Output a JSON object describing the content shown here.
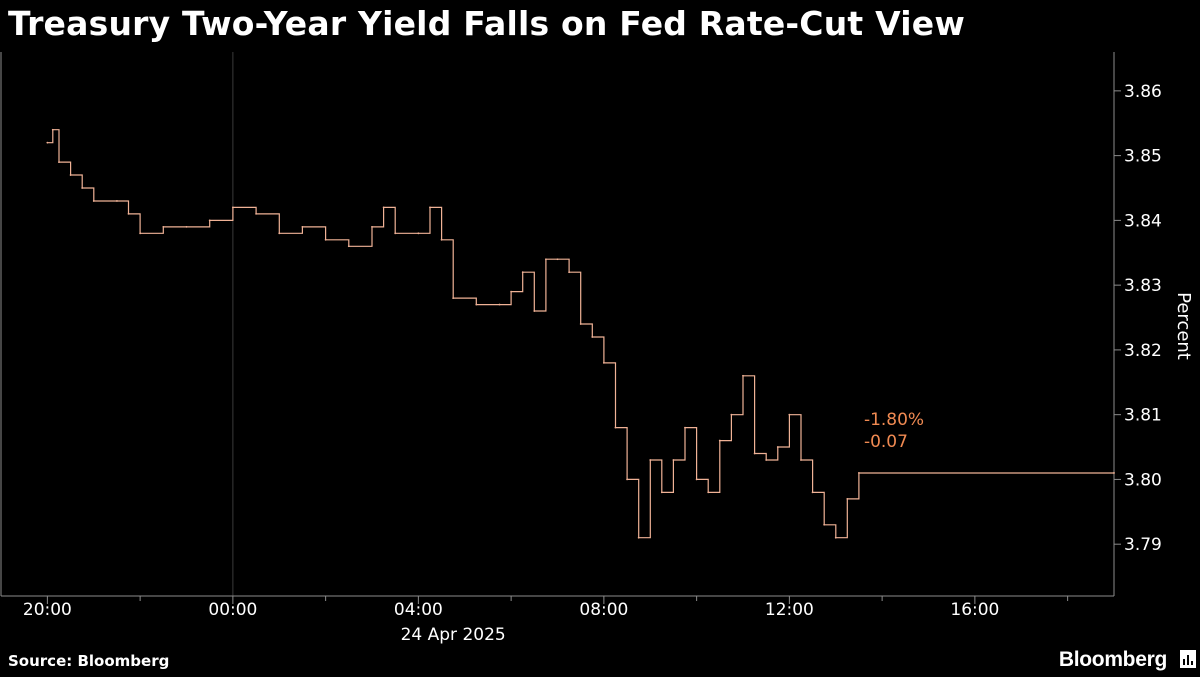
{
  "header": {
    "title": "Treasury Two-Year Yield Falls on Fed Rate-Cut View"
  },
  "footer": {
    "source": "Source: Bloomberg",
    "brand": "Bloomberg"
  },
  "colors": {
    "line": "#f0b296",
    "annotation": "#f08a52",
    "grid": "#3a3a3a",
    "axis": "#8c8c8c",
    "background": "#000000"
  },
  "chart_data": {
    "type": "line",
    "title": "Treasury Two-Year Yield Falls on Fed Rate-Cut View",
    "xlabel": "",
    "ylabel": "Percent",
    "date_label": "24 Apr 2025",
    "x_ticks": [
      "20:00",
      "00:00",
      "04:00",
      "08:00",
      "12:00",
      "16:00"
    ],
    "x_range": [
      "2025-04-23T19:00",
      "2025-04-24T19:00"
    ],
    "y_ticks": [
      "3.86",
      "3.85",
      "3.84",
      "3.83",
      "3.82",
      "3.81",
      "3.80",
      "3.79"
    ],
    "ylim": [
      3.782,
      3.866
    ],
    "grid": "vertical line at 00:00 only",
    "annotations": {
      "change_pct": "-1.80%",
      "change_abs": "-0.07"
    },
    "series": [
      {
        "values": [
          [
            "2025-04-23T20:00",
            3.852
          ],
          [
            "2025-04-23T20:07",
            3.854
          ],
          [
            "2025-04-23T20:15",
            3.849
          ],
          [
            "2025-04-23T20:30",
            3.847
          ],
          [
            "2025-04-23T20:45",
            3.845
          ],
          [
            "2025-04-23T21:00",
            3.843
          ],
          [
            "2025-04-23T21:30",
            3.843
          ],
          [
            "2025-04-23T21:45",
            3.841
          ],
          [
            "2025-04-23T22:00",
            3.838
          ],
          [
            "2025-04-23T22:30",
            3.839
          ],
          [
            "2025-04-23T23:00",
            3.839
          ],
          [
            "2025-04-23T23:30",
            3.84
          ],
          [
            "2025-04-24T00:00",
            3.842
          ],
          [
            "2025-04-24T00:30",
            3.841
          ],
          [
            "2025-04-24T01:00",
            3.838
          ],
          [
            "2025-04-24T01:30",
            3.839
          ],
          [
            "2025-04-24T02:00",
            3.837
          ],
          [
            "2025-04-24T02:30",
            3.836
          ],
          [
            "2025-04-24T03:00",
            3.839
          ],
          [
            "2025-04-24T03:15",
            3.842
          ],
          [
            "2025-04-24T03:30",
            3.838
          ],
          [
            "2025-04-24T04:00",
            3.838
          ],
          [
            "2025-04-24T04:15",
            3.842
          ],
          [
            "2025-04-24T04:30",
            3.837
          ],
          [
            "2025-04-24T04:45",
            3.828
          ],
          [
            "2025-04-24T05:15",
            3.827
          ],
          [
            "2025-04-24T05:45",
            3.827
          ],
          [
            "2025-04-24T06:00",
            3.829
          ],
          [
            "2025-04-24T06:15",
            3.832
          ],
          [
            "2025-04-24T06:30",
            3.826
          ],
          [
            "2025-04-24T06:45",
            3.834
          ],
          [
            "2025-04-24T07:00",
            3.834
          ],
          [
            "2025-04-24T07:15",
            3.832
          ],
          [
            "2025-04-24T07:30",
            3.824
          ],
          [
            "2025-04-24T07:45",
            3.822
          ],
          [
            "2025-04-24T08:00",
            3.818
          ],
          [
            "2025-04-24T08:15",
            3.808
          ],
          [
            "2025-04-24T08:30",
            3.8
          ],
          [
            "2025-04-24T08:45",
            3.791
          ],
          [
            "2025-04-24T09:00",
            3.803
          ],
          [
            "2025-04-24T09:15",
            3.798
          ],
          [
            "2025-04-24T09:30",
            3.803
          ],
          [
            "2025-04-24T09:45",
            3.808
          ],
          [
            "2025-04-24T10:00",
            3.8
          ],
          [
            "2025-04-24T10:15",
            3.798
          ],
          [
            "2025-04-24T10:30",
            3.806
          ],
          [
            "2025-04-24T10:45",
            3.81
          ],
          [
            "2025-04-24T11:00",
            3.816
          ],
          [
            "2025-04-24T11:15",
            3.804
          ],
          [
            "2025-04-24T11:30",
            3.803
          ],
          [
            "2025-04-24T11:45",
            3.805
          ],
          [
            "2025-04-24T12:00",
            3.81
          ],
          [
            "2025-04-24T12:15",
            3.803
          ],
          [
            "2025-04-24T12:30",
            3.798
          ],
          [
            "2025-04-24T12:45",
            3.793
          ],
          [
            "2025-04-24T13:00",
            3.791
          ],
          [
            "2025-04-24T13:15",
            3.797
          ],
          [
            "2025-04-24T13:30",
            3.801
          ],
          [
            "2025-04-24T19:00",
            3.801
          ]
        ]
      }
    ]
  }
}
